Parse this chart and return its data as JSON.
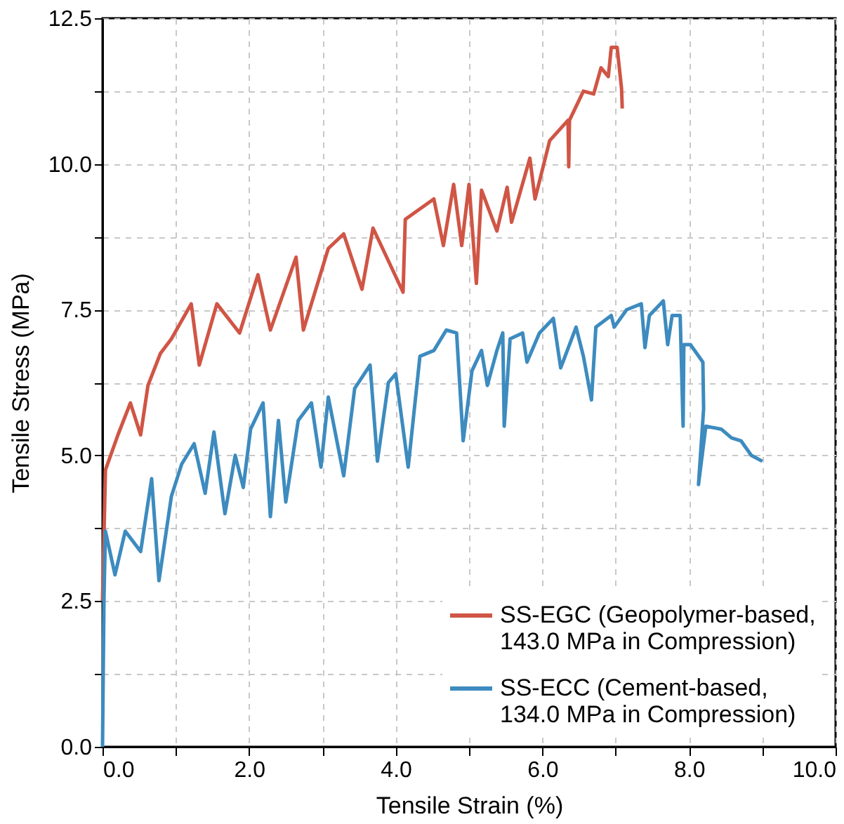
{
  "chart_data": {
    "type": "line",
    "xlabel": "Tensile Strain (%)",
    "ylabel": "Tensile Stress (MPa)",
    "xlim": [
      0,
      10
    ],
    "ylim": [
      0,
      12.5
    ],
    "xticks": [
      {
        "value": 0,
        "label": "0.0"
      },
      {
        "value": 1,
        "label": null
      },
      {
        "value": 2,
        "label": "2.0"
      },
      {
        "value": 3,
        "label": null
      },
      {
        "value": 4,
        "label": "4.0"
      },
      {
        "value": 5,
        "label": null
      },
      {
        "value": 6,
        "label": "6.0"
      },
      {
        "value": 7,
        "label": null
      },
      {
        "value": 8,
        "label": "8.0"
      },
      {
        "value": 9,
        "label": null
      },
      {
        "value": 10,
        "label": "10.0"
      }
    ],
    "yticks": [
      {
        "value": 0,
        "label": "0.0"
      },
      {
        "value": 1.25,
        "label": null
      },
      {
        "value": 2.5,
        "label": "2.5"
      },
      {
        "value": 3.75,
        "label": null
      },
      {
        "value": 5,
        "label": "5.0"
      },
      {
        "value": 6.25,
        "label": null
      },
      {
        "value": 7.5,
        "label": "7.5"
      },
      {
        "value": 8.75,
        "label": null
      },
      {
        "value": 10,
        "label": "10.0"
      },
      {
        "value": 11.25,
        "label": null
      },
      {
        "value": 12.5,
        "label": "12.5"
      }
    ],
    "grid": true,
    "legend": "bottom right",
    "line_style": "solid",
    "marker": "none",
    "series": [
      {
        "name": "SS-EGC (Geopolymer-based,\n143.0 MPa in Compression)",
        "color": "#d05545",
        "x": [
          0,
          0.04,
          0.21,
          0.38,
          0.52,
          0.62,
          0.79,
          0.94,
          1.21,
          1.32,
          1.56,
          1.87,
          2.12,
          2.29,
          2.64,
          2.74,
          3.08,
          3.29,
          3.54,
          3.69,
          4.1,
          4.13,
          4.52,
          4.65,
          4.79,
          4.9,
          5.0,
          5.1,
          5.17,
          5.38,
          5.52,
          5.58,
          5.83,
          5.9,
          6.1,
          6.35,
          6.36,
          6.37,
          6.56,
          6.7,
          6.8,
          6.9,
          6.94,
          7.02,
          7.08,
          7.09
        ],
        "values": [
          2.5,
          4.75,
          5.35,
          5.9,
          5.35,
          6.2,
          6.75,
          7.0,
          7.6,
          6.55,
          7.6,
          7.1,
          8.1,
          7.15,
          8.4,
          7.15,
          8.55,
          8.8,
          7.85,
          8.9,
          7.8,
          9.05,
          9.4,
          8.6,
          9.65,
          8.6,
          9.65,
          7.95,
          9.55,
          8.85,
          9.6,
          9.0,
          10.1,
          9.4,
          10.4,
          10.75,
          9.95,
          10.75,
          11.25,
          11.2,
          11.65,
          11.5,
          12.0,
          12.0,
          11.3,
          10.95
        ]
      },
      {
        "name": "SS-ECC (Cement-based,\n134.0 MPa in Compression)",
        "color": "#3d8bbf",
        "x": [
          0,
          0.02,
          0.04,
          0.17,
          0.31,
          0.52,
          0.67,
          0.77,
          0.94,
          1.08,
          1.25,
          1.4,
          1.52,
          1.67,
          1.81,
          1.92,
          2.02,
          2.19,
          2.29,
          2.4,
          2.5,
          2.67,
          2.85,
          2.98,
          3.08,
          3.29,
          3.44,
          3.65,
          3.75,
          3.9,
          4.0,
          4.17,
          4.33,
          4.52,
          4.69,
          4.83,
          4.92,
          5.04,
          5.17,
          5.25,
          5.38,
          5.46,
          5.48,
          5.56,
          5.73,
          5.79,
          5.96,
          6.15,
          6.25,
          6.46,
          6.56,
          6.67,
          6.73,
          6.94,
          6.98,
          7.15,
          7.35,
          7.4,
          7.46,
          7.65,
          7.71,
          7.77,
          7.88,
          7.92,
          7.93,
          8.02,
          8.19,
          8.2,
          8.13,
          8.23,
          8.44,
          8.58,
          8.71,
          8.85,
          9.0
        ],
        "values": [
          0,
          2.55,
          3.7,
          2.95,
          3.7,
          3.35,
          4.6,
          2.85,
          4.3,
          4.85,
          5.2,
          4.35,
          5.4,
          4.0,
          5.0,
          4.45,
          5.45,
          5.9,
          3.95,
          5.6,
          4.2,
          5.6,
          5.9,
          4.8,
          6.0,
          4.65,
          6.15,
          6.55,
          4.9,
          6.25,
          6.4,
          4.8,
          6.7,
          6.8,
          7.15,
          7.1,
          5.25,
          6.45,
          6.8,
          6.2,
          6.8,
          7.1,
          5.5,
          7.0,
          7.1,
          6.6,
          7.1,
          7.35,
          6.5,
          7.2,
          6.7,
          5.95,
          7.2,
          7.4,
          7.2,
          7.5,
          7.6,
          6.85,
          7.4,
          7.65,
          6.9,
          7.4,
          7.4,
          5.5,
          6.9,
          6.9,
          6.6,
          5.8,
          4.5,
          5.5,
          5.45,
          5.3,
          5.25,
          5.0,
          4.9
        ]
      }
    ]
  }
}
